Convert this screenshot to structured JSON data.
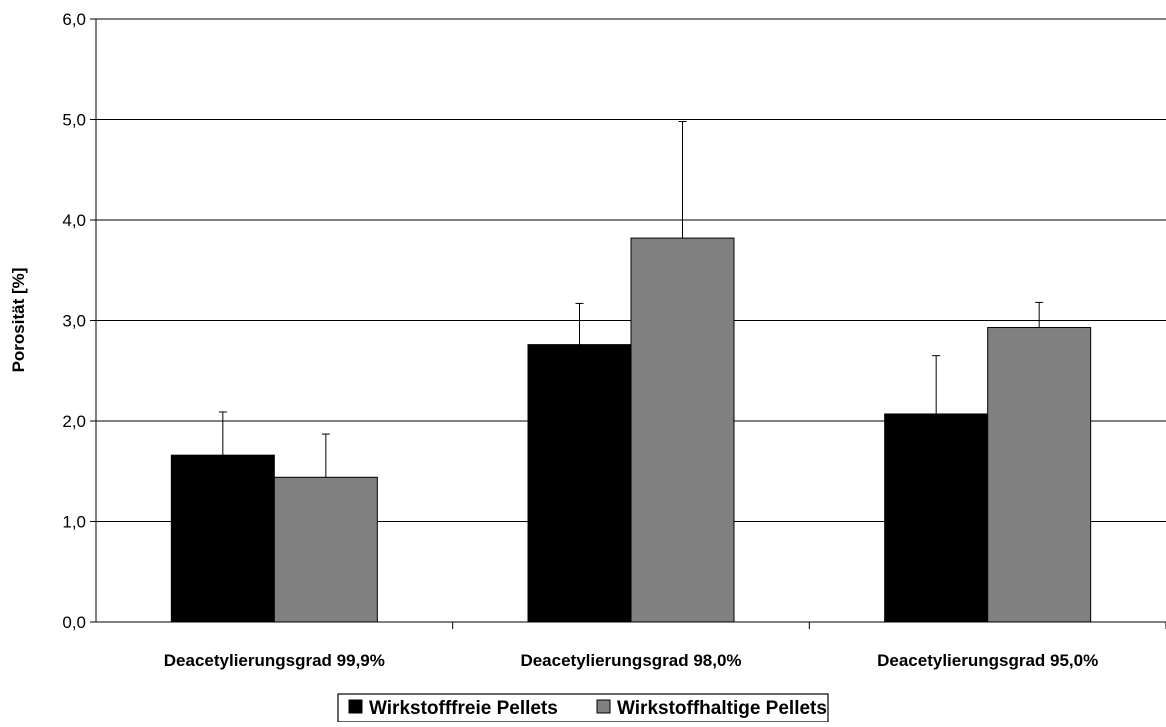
{
  "chart_data": {
    "type": "bar",
    "ylabel": "Porosität [%]",
    "xlabel": "",
    "ylim": [
      0,
      6
    ],
    "yticks": [
      "0,0",
      "1,0",
      "2,0",
      "3,0",
      "4,0",
      "5,0",
      "6,0"
    ],
    "grid": true,
    "legend_position": "bottom",
    "categories": [
      "Deacetylierungsgrad 99,9%",
      "Deacetylierungsgrad 98,0%",
      "Deacetylierungsgrad 95,0%"
    ],
    "series": [
      {
        "name": "Wirkstofffreie Pellets",
        "color": "#000000",
        "values": [
          1.66,
          2.76,
          2.07
        ],
        "errors": [
          0.43,
          0.41,
          0.58
        ]
      },
      {
        "name": "Wirkstoffhaltige Pellets",
        "color": "#808080",
        "values": [
          1.44,
          3.82,
          2.93
        ],
        "errors": [
          0.43,
          1.16,
          0.25
        ]
      }
    ]
  }
}
